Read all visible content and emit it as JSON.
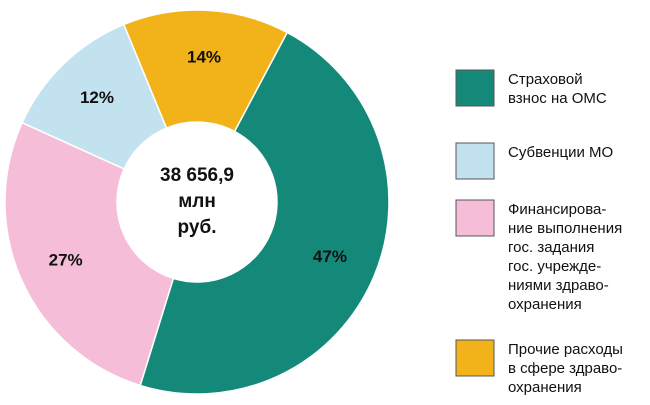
{
  "chart_data": {
    "type": "pie",
    "categories": [
      "Страховой\nвзнос на ОМС",
      "Субвенции МО",
      "Финансирова-\nние выполнения\nгос. задания\nгос. учрежде-\nниями здраво-\nохранения",
      "Прочие расходы\nв сфере здраво-\nохранения"
    ],
    "values": [
      47,
      12,
      27,
      14
    ],
    "value_labels": [
      "47%",
      "12%",
      "27%",
      "14%"
    ],
    "colors": [
      "#14897a",
      "#c3e2ef",
      "#f5bdd7",
      "#f2b31a"
    ],
    "center_text": [
      "38 656,9",
      "млн",
      "руб."
    ]
  }
}
